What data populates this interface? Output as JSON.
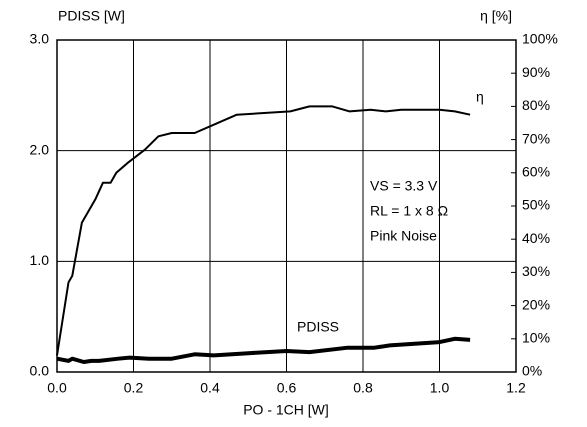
{
  "chart_data": {
    "type": "line",
    "ylabel": "PDISS [W]",
    "y2label": "η [%]",
    "xlabel": "PO - 1CH [W]",
    "annotations": [
      "VS = 3.3 V",
      "RL = 1 x 8 Ω",
      "Pink Noise"
    ],
    "xlim": [
      0,
      1.2
    ],
    "xticks": [
      {
        "value": 0,
        "label": "0.0"
      },
      {
        "value": 0.2,
        "label": "0.2"
      },
      {
        "value": 0.4,
        "label": "0.4"
      },
      {
        "value": 0.6,
        "label": "0.6"
      },
      {
        "value": 0.8,
        "label": "0.8"
      },
      {
        "value": 1.0,
        "label": "1.0"
      },
      {
        "value": 1.2,
        "label": "1.2"
      }
    ],
    "ylim": [
      0,
      3
    ],
    "yticks": [
      {
        "value": 0,
        "label": "0.0"
      },
      {
        "value": 1,
        "label": "1.0"
      },
      {
        "value": 2,
        "label": "2.0"
      },
      {
        "value": 3,
        "label": "3.0"
      }
    ],
    "y2lim": [
      0,
      100
    ],
    "y2ticks": [
      {
        "value": 0,
        "label": "0%"
      },
      {
        "value": 10,
        "label": "10%"
      },
      {
        "value": 20,
        "label": "20%"
      },
      {
        "value": 30,
        "label": "30%"
      },
      {
        "value": 40,
        "label": "40%"
      },
      {
        "value": 50,
        "label": "50%"
      },
      {
        "value": 60,
        "label": "60%"
      },
      {
        "value": 70,
        "label": "70%"
      },
      {
        "value": 80,
        "label": "80%"
      },
      {
        "value": 90,
        "label": "90%"
      },
      {
        "value": 100,
        "label": "100%"
      }
    ],
    "grid": true,
    "series": [
      {
        "name": "η",
        "color": "#000000",
        "axis": "y2",
        "x": [
          0,
          0.03,
          0.04,
          0.065,
          0.1,
          0.12,
          0.14,
          0.155,
          0.185,
          0.23,
          0.265,
          0.3,
          0.36,
          0.47,
          0.61,
          0.66,
          0.72,
          0.765,
          0.82,
          0.86,
          0.9,
          1.0,
          1.04,
          1.08
        ],
        "values": [
          5,
          27,
          29,
          45,
          52,
          57,
          57,
          60,
          63,
          67,
          71,
          72,
          72,
          77.5,
          78.5,
          80,
          80,
          78.5,
          79,
          78.5,
          79,
          79,
          78.5,
          77.5
        ]
      },
      {
        "name": "PDISS",
        "color": "#000000",
        "x": [
          0,
          0.03,
          0.04,
          0.07,
          0.09,
          0.11,
          0.16,
          0.19,
          0.24,
          0.3,
          0.36,
          0.41,
          0.5,
          0.6,
          0.66,
          0.76,
          0.83,
          0.87,
          1.0,
          1.04,
          1.08
        ],
        "values": [
          0.12,
          0.1,
          0.12,
          0.09,
          0.1,
          0.1,
          0.12,
          0.13,
          0.12,
          0.12,
          0.16,
          0.15,
          0.17,
          0.19,
          0.18,
          0.22,
          0.22,
          0.24,
          0.27,
          0.3,
          0.29
        ]
      }
    ]
  }
}
